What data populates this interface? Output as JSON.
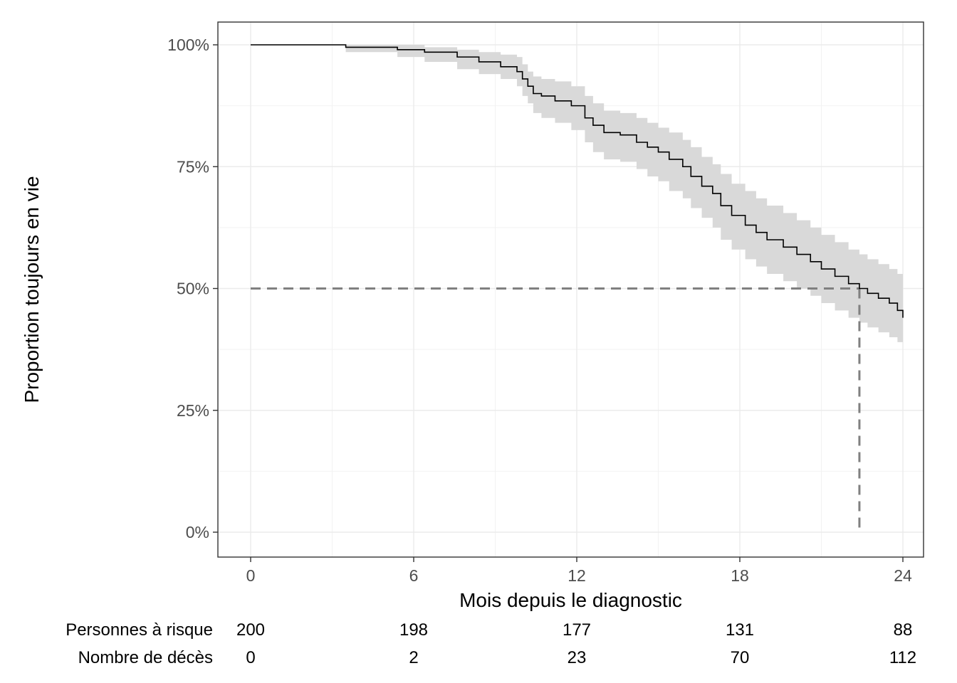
{
  "chart_data": {
    "type": "line",
    "subtype": "kaplan-meier survival curve with 95% confidence band",
    "xlabel": "Mois depuis le diagnostic",
    "ylabel": "Proportion toujours en vie",
    "xlim": [
      -2,
      24.7
    ],
    "ylim": [
      -0.05,
      1.05
    ],
    "x_ticks": [
      0,
      6,
      12,
      18,
      24
    ],
    "x_tick_labels": [
      "0",
      "6",
      "12",
      "18",
      "24"
    ],
    "y_ticks": [
      0,
      0.25,
      0.5,
      0.75,
      1.0
    ],
    "y_tick_labels": [
      "0%",
      "25%",
      "50%",
      "75%",
      "100%"
    ],
    "grid": true,
    "survival_curve": {
      "time": [
        0,
        3.5,
        5.4,
        6.4,
        7.6,
        8.4,
        9.2,
        9.8,
        10.0,
        10.2,
        10.4,
        10.7,
        11.2,
        11.8,
        12.3,
        12.6,
        13.0,
        13.6,
        14.2,
        14.6,
        15.0,
        15.4,
        15.9,
        16.2,
        16.6,
        17.0,
        17.3,
        17.7,
        18.2,
        18.6,
        19.0,
        19.6,
        20.1,
        20.6,
        21.0,
        21.5,
        22.0,
        22.4,
        22.7,
        23.1,
        23.5,
        23.8,
        24.0
      ],
      "survival": [
        1.0,
        0.995,
        0.99,
        0.985,
        0.975,
        0.965,
        0.955,
        0.945,
        0.93,
        0.915,
        0.9,
        0.895,
        0.885,
        0.875,
        0.85,
        0.835,
        0.82,
        0.815,
        0.8,
        0.79,
        0.78,
        0.765,
        0.75,
        0.73,
        0.71,
        0.695,
        0.67,
        0.65,
        0.63,
        0.615,
        0.6,
        0.585,
        0.57,
        0.555,
        0.54,
        0.525,
        0.51,
        0.5,
        0.49,
        0.48,
        0.47,
        0.455,
        0.44
      ],
      "ci_lower": [
        1.0,
        0.985,
        0.975,
        0.965,
        0.95,
        0.94,
        0.93,
        0.915,
        0.895,
        0.88,
        0.86,
        0.85,
        0.84,
        0.825,
        0.8,
        0.78,
        0.765,
        0.76,
        0.745,
        0.73,
        0.72,
        0.7,
        0.685,
        0.665,
        0.645,
        0.625,
        0.6,
        0.58,
        0.56,
        0.545,
        0.53,
        0.515,
        0.5,
        0.485,
        0.47,
        0.455,
        0.44,
        0.43,
        0.42,
        0.41,
        0.4,
        0.39,
        0.375
      ],
      "ci_upper": [
        1.0,
        1.0,
        1.0,
        0.995,
        0.99,
        0.985,
        0.98,
        0.975,
        0.96,
        0.945,
        0.935,
        0.93,
        0.925,
        0.915,
        0.895,
        0.88,
        0.865,
        0.86,
        0.85,
        0.84,
        0.83,
        0.82,
        0.805,
        0.79,
        0.77,
        0.755,
        0.735,
        0.715,
        0.7,
        0.685,
        0.67,
        0.655,
        0.64,
        0.625,
        0.61,
        0.595,
        0.58,
        0.57,
        0.56,
        0.55,
        0.54,
        0.53,
        0.515
      ]
    },
    "median_reference": {
      "level": 0.5,
      "median_time": 22.4,
      "style": "dashed",
      "color": "#808080"
    },
    "curve_color": "#000000",
    "band_color": "#d9d9d9",
    "risk_table": {
      "row_labels": [
        "Personnes à risque",
        "Nombre de décès"
      ],
      "times": [
        0,
        6,
        12,
        18,
        24
      ],
      "rows": [
        [
          "200",
          "198",
          "177",
          "131",
          "88"
        ],
        [
          "0",
          "2",
          "23",
          "70",
          "112"
        ]
      ]
    }
  }
}
